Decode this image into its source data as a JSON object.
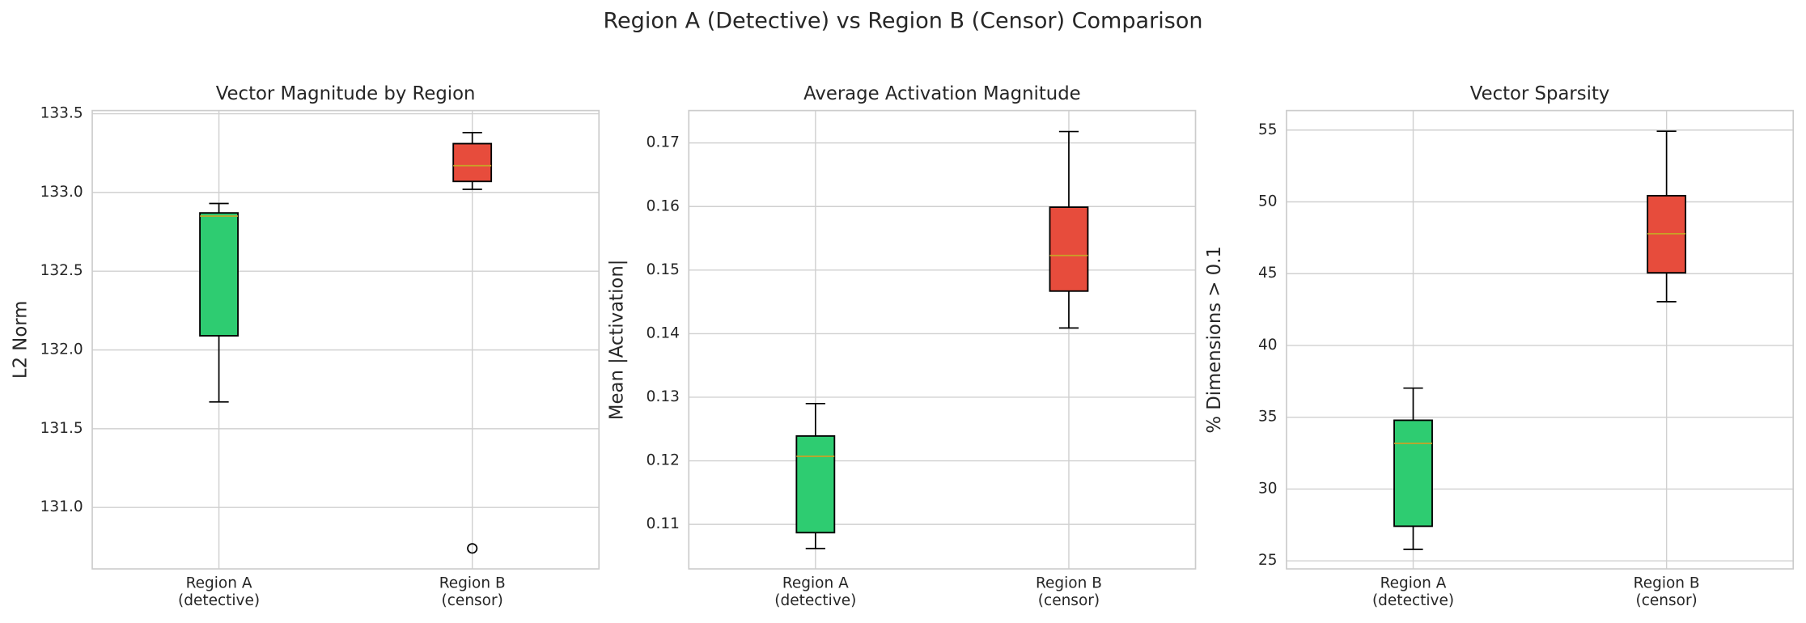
{
  "title": "Region A (Detective) vs Region B (Censor) Comparison",
  "chart_data": [
    {
      "type": "box",
      "title": "Vector Magnitude by Region",
      "ylabel": "L2 Norm",
      "categories": [
        [
          "Region A",
          "(detective)"
        ],
        [
          "Region B",
          "(censor)"
        ]
      ],
      "colors": [
        "#2ecc71",
        "#e74c3c"
      ],
      "median_color": "#c9a227",
      "grid": true,
      "values": [
        {
          "whislo": 131.67,
          "q1": 132.09,
          "med": 132.85,
          "q3": 132.87,
          "whishi": 132.93,
          "fliers": []
        },
        {
          "whislo": 133.02,
          "q1": 133.07,
          "med": 133.17,
          "q3": 133.31,
          "whishi": 133.38,
          "fliers": [
            130.74
          ]
        }
      ],
      "ylim": [
        130.61,
        133.52
      ],
      "yticks": [
        {
          "value": 131,
          "label": "131.0"
        },
        {
          "value": 131.5,
          "label": "131.5"
        },
        {
          "value": 132,
          "label": "132.0"
        },
        {
          "value": 132.5,
          "label": "132.5"
        },
        {
          "value": 133,
          "label": "133.0"
        },
        {
          "value": 133.5,
          "label": "133.5"
        }
      ]
    },
    {
      "type": "box",
      "title": "Average Activation Magnitude",
      "ylabel": "Mean |Activation|",
      "categories": [
        [
          "Region A",
          "(detective)"
        ],
        [
          "Region B",
          "(censor)"
        ]
      ],
      "colors": [
        "#2ecc71",
        "#e74c3c"
      ],
      "median_color": "#c9a227",
      "grid": true,
      "values": [
        {
          "whislo": 0.1062,
          "q1": 0.1087,
          "med": 0.1207,
          "q3": 0.1239,
          "whishi": 0.129,
          "fliers": []
        },
        {
          "whislo": 0.1409,
          "q1": 0.1467,
          "med": 0.1523,
          "q3": 0.1599,
          "whishi": 0.1718,
          "fliers": []
        }
      ],
      "ylim": [
        0.103,
        0.1751
      ],
      "yticks": [
        0.11,
        0.12,
        0.13,
        0.14,
        0.15,
        0.16,
        0.17
      ]
    },
    {
      "type": "box",
      "title": "Vector Sparsity",
      "ylabel": "% Dimensions > 0.1",
      "categories": [
        [
          "Region A",
          "(detective)"
        ],
        [
          "Region B",
          "(censor)"
        ]
      ],
      "colors": [
        "#2ecc71",
        "#e74c3c"
      ],
      "median_color": "#c9a227",
      "grid": true,
      "values": [
        {
          "whislo": 25.8,
          "q1": 27.41,
          "med": 33.18,
          "q3": 34.79,
          "whishi": 37.03,
          "fliers": []
        },
        {
          "whislo": 43.05,
          "q1": 45.06,
          "med": 47.78,
          "q3": 50.43,
          "whishi": 54.92,
          "fliers": []
        }
      ],
      "ylim": [
        24.44,
        56.36
      ],
      "yticks": [
        25,
        30,
        35,
        40,
        45,
        50,
        55
      ]
    }
  ]
}
